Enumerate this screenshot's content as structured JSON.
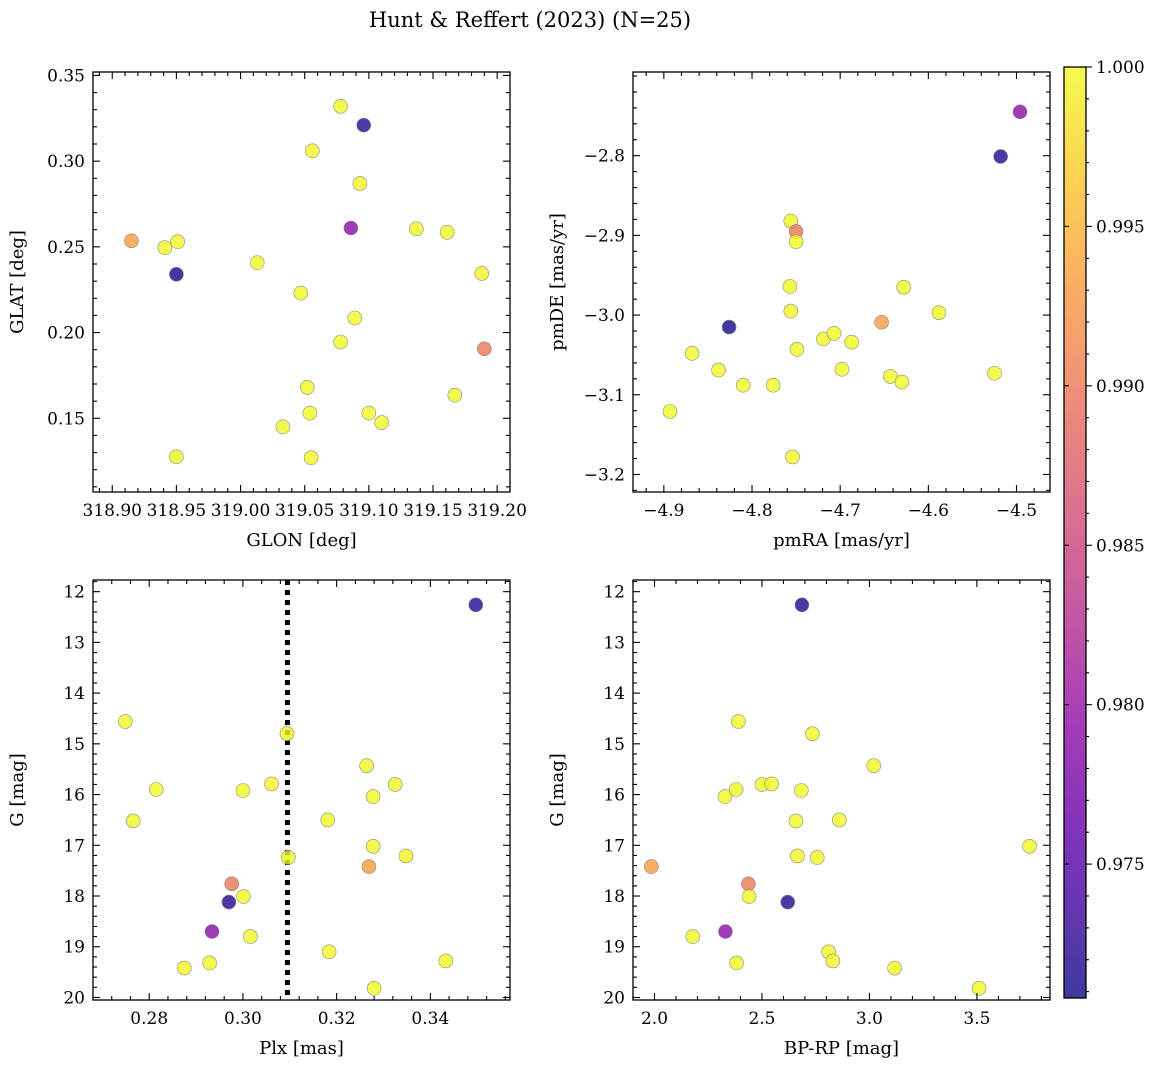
{
  "chart_data": {
    "suptitle": "Hunt & Reffert (2023) (N=25)",
    "colorbar": {
      "range": [
        0.9708,
        1.0
      ],
      "ticks": [
        "0.975",
        "0.980",
        "0.985",
        "0.990",
        "0.995",
        "1.000"
      ],
      "tick_values": [
        0.975,
        0.98,
        0.985,
        0.99,
        0.995,
        1.0
      ],
      "colormap": "plasma"
    },
    "panels": [
      {
        "type": "scatter",
        "xlabel": "GLON [deg]",
        "ylabel": "GLAT [deg]",
        "xlim": [
          318.885,
          319.21
        ],
        "ylim": [
          0.107,
          0.352
        ],
        "invert_y": false,
        "xticks": [
          318.9,
          318.95,
          319.0,
          319.05,
          319.1,
          319.15,
          319.2
        ],
        "xtick_labels": [
          "318.90",
          "318.95",
          "319.00",
          "319.05",
          "319.10",
          "319.15",
          "319.20"
        ],
        "yticks": [
          0.15,
          0.2,
          0.25,
          0.3,
          0.35
        ],
        "ytick_labels": [
          "0.15",
          "0.20",
          "0.25",
          "0.30",
          "0.35"
        ],
        "points": [
          {
            "x": 318.915,
            "y": 0.2535,
            "c": 0.993
          },
          {
            "x": 318.941,
            "y": 0.2495,
            "c": 1.0
          },
          {
            "x": 318.951,
            "y": 0.253,
            "c": 1.0
          },
          {
            "x": 318.95,
            "y": 0.234,
            "c": 0.971
          },
          {
            "x": 318.95,
            "y": 0.1275,
            "c": 1.0
          },
          {
            "x": 319.013,
            "y": 0.2408,
            "c": 1.0
          },
          {
            "x": 319.033,
            "y": 0.145,
            "c": 1.0
          },
          {
            "x": 319.047,
            "y": 0.223,
            "c": 1.0
          },
          {
            "x": 319.052,
            "y": 0.168,
            "c": 1.0
          },
          {
            "x": 319.054,
            "y": 0.153,
            "c": 1.0
          },
          {
            "x": 319.055,
            "y": 0.127,
            "c": 1.0
          },
          {
            "x": 319.056,
            "y": 0.306,
            "c": 1.0
          },
          {
            "x": 319.078,
            "y": 0.332,
            "c": 1.0
          },
          {
            "x": 319.078,
            "y": 0.1945,
            "c": 1.0
          },
          {
            "x": 319.086,
            "y": 0.261,
            "c": 0.979
          },
          {
            "x": 319.089,
            "y": 0.2085,
            "c": 1.0
          },
          {
            "x": 319.093,
            "y": 0.287,
            "c": 1.0
          },
          {
            "x": 319.096,
            "y": 0.321,
            "c": 0.972
          },
          {
            "x": 319.1,
            "y": 0.153,
            "c": 1.0
          },
          {
            "x": 319.11,
            "y": 0.1475,
            "c": 1.0
          },
          {
            "x": 319.137,
            "y": 0.2605,
            "c": 1.0
          },
          {
            "x": 319.161,
            "y": 0.2585,
            "c": 1.0
          },
          {
            "x": 319.167,
            "y": 0.1635,
            "c": 1.0
          },
          {
            "x": 319.188,
            "y": 0.2345,
            "c": 1.0
          },
          {
            "x": 319.19,
            "y": 0.1905,
            "c": 0.99
          }
        ]
      },
      {
        "type": "scatter",
        "xlabel": "pmRA [mas/yr]",
        "ylabel": "pmDE [mas/yr]",
        "xlim": [
          -4.935,
          -4.462
        ],
        "ylim": [
          -3.222,
          -2.695
        ],
        "invert_y": false,
        "xticks": [
          -4.9,
          -4.8,
          -4.7,
          -4.6,
          -4.5
        ],
        "xtick_labels": [
          "−4.9",
          "−4.8",
          "−4.7",
          "−4.6",
          "−4.5"
        ],
        "yticks": [
          -3.2,
          -3.1,
          -3.0,
          -2.9,
          -2.8
        ],
        "ytick_labels": [
          "−3.2",
          "−3.1",
          "−3.0",
          "−2.9",
          "−2.8"
        ],
        "points": [
          {
            "x": -4.893,
            "y": -3.121,
            "c": 1.0
          },
          {
            "x": -4.868,
            "y": -3.048,
            "c": 1.0
          },
          {
            "x": -4.838,
            "y": -3.069,
            "c": 1.0
          },
          {
            "x": -4.826,
            "y": -3.015,
            "c": 0.971
          },
          {
            "x": -4.81,
            "y": -3.088,
            "c": 1.0
          },
          {
            "x": -4.776,
            "y": -3.088,
            "c": 1.0
          },
          {
            "x": -4.756,
            "y": -2.882,
            "c": 1.0
          },
          {
            "x": -4.757,
            "y": -2.964,
            "c": 1.0
          },
          {
            "x": -4.756,
            "y": -2.995,
            "c": 1.0
          },
          {
            "x": -4.754,
            "y": -3.178,
            "c": 1.0
          },
          {
            "x": -4.75,
            "y": -2.895,
            "c": 0.99
          },
          {
            "x": -4.75,
            "y": -2.908,
            "c": 1.0
          },
          {
            "x": -4.749,
            "y": -3.043,
            "c": 1.0
          },
          {
            "x": -4.719,
            "y": -3.03,
            "c": 1.0
          },
          {
            "x": -4.707,
            "y": -3.023,
            "c": 1.0
          },
          {
            "x": -4.698,
            "y": -3.068,
            "c": 1.0
          },
          {
            "x": -4.687,
            "y": -3.034,
            "c": 1.0
          },
          {
            "x": -4.653,
            "y": -3.009,
            "c": 0.993
          },
          {
            "x": -4.643,
            "y": -3.077,
            "c": 1.0
          },
          {
            "x": -4.63,
            "y": -3.084,
            "c": 1.0
          },
          {
            "x": -4.628,
            "y": -2.965,
            "c": 1.0
          },
          {
            "x": -4.588,
            "y": -2.997,
            "c": 1.0
          },
          {
            "x": -4.525,
            "y": -3.073,
            "c": 1.0
          },
          {
            "x": -4.518,
            "y": -2.801,
            "c": 0.972
          },
          {
            "x": -4.496,
            "y": -2.745,
            "c": 0.979
          }
        ]
      },
      {
        "type": "scatter",
        "xlabel": "Plx [mas]",
        "ylabel": "G [mag]",
        "xlim": [
          0.268,
          0.357
        ],
        "ylim": [
          20.05,
          11.77
        ],
        "invert_y": true,
        "vline": {
          "x": 0.3095,
          "style": "dotted",
          "color": "#000000"
        },
        "xticks": [
          0.28,
          0.3,
          0.32,
          0.34
        ],
        "xtick_labels": [
          "0.28",
          "0.30",
          "0.32",
          "0.34"
        ],
        "yticks": [
          12,
          13,
          14,
          15,
          16,
          17,
          18,
          19,
          20
        ],
        "ytick_labels": [
          "12",
          "13",
          "14",
          "15",
          "16",
          "17",
          "18",
          "19",
          "20"
        ],
        "points": [
          {
            "x": 0.2749,
            "y": 14.56,
            "c": 1.0
          },
          {
            "x": 0.2766,
            "y": 16.52,
            "c": 1.0
          },
          {
            "x": 0.2815,
            "y": 15.9,
            "c": 1.0
          },
          {
            "x": 0.2875,
            "y": 19.42,
            "c": 1.0
          },
          {
            "x": 0.2929,
            "y": 19.32,
            "c": 1.0
          },
          {
            "x": 0.2934,
            "y": 18.7,
            "c": 0.979
          },
          {
            "x": 0.297,
            "y": 18.12,
            "c": 0.972
          },
          {
            "x": 0.2976,
            "y": 17.76,
            "c": 0.99
          },
          {
            "x": 0.3,
            "y": 15.92,
            "c": 1.0
          },
          {
            "x": 0.3001,
            "y": 18.01,
            "c": 1.0
          },
          {
            "x": 0.3016,
            "y": 18.8,
            "c": 1.0
          },
          {
            "x": 0.3061,
            "y": 15.79,
            "c": 1.0
          },
          {
            "x": 0.3094,
            "y": 14.8,
            "c": 1.0
          },
          {
            "x": 0.3097,
            "y": 17.24,
            "c": 1.0
          },
          {
            "x": 0.3181,
            "y": 16.5,
            "c": 1.0
          },
          {
            "x": 0.3184,
            "y": 19.1,
            "c": 1.0
          },
          {
            "x": 0.3264,
            "y": 15.43,
            "c": 1.0
          },
          {
            "x": 0.3269,
            "y": 17.42,
            "c": 0.993
          },
          {
            "x": 0.3278,
            "y": 16.04,
            "c": 1.0
          },
          {
            "x": 0.3278,
            "y": 17.02,
            "c": 1.0
          },
          {
            "x": 0.328,
            "y": 19.82,
            "c": 1.0
          },
          {
            "x": 0.3325,
            "y": 15.8,
            "c": 1.0
          },
          {
            "x": 0.3348,
            "y": 17.21,
            "c": 1.0
          },
          {
            "x": 0.3433,
            "y": 19.28,
            "c": 1.0
          },
          {
            "x": 0.3497,
            "y": 12.26,
            "c": 0.972
          }
        ]
      },
      {
        "type": "scatter",
        "xlabel": "BP-RP [mag]",
        "ylabel": "G [mag]",
        "xlim": [
          1.9,
          3.84
        ],
        "ylim": [
          20.05,
          11.77
        ],
        "invert_y": true,
        "xticks": [
          2.0,
          2.5,
          3.0,
          3.5
        ],
        "xtick_labels": [
          "2.0",
          "2.5",
          "3.0",
          "3.5"
        ],
        "yticks": [
          12,
          13,
          14,
          15,
          16,
          17,
          18,
          19,
          20
        ],
        "ytick_labels": [
          "12",
          "13",
          "14",
          "15",
          "16",
          "17",
          "18",
          "19",
          "20"
        ],
        "points": [
          {
            "x": 1.985,
            "y": 17.42,
            "c": 0.993
          },
          {
            "x": 2.178,
            "y": 18.8,
            "c": 1.0
          },
          {
            "x": 2.328,
            "y": 16.04,
            "c": 1.0
          },
          {
            "x": 2.33,
            "y": 18.7,
            "c": 0.979
          },
          {
            "x": 2.38,
            "y": 15.9,
            "c": 1.0
          },
          {
            "x": 2.382,
            "y": 19.32,
            "c": 1.0
          },
          {
            "x": 2.39,
            "y": 14.56,
            "c": 1.0
          },
          {
            "x": 2.437,
            "y": 17.76,
            "c": 0.99
          },
          {
            "x": 2.44,
            "y": 18.01,
            "c": 1.0
          },
          {
            "x": 2.5,
            "y": 15.8,
            "c": 1.0
          },
          {
            "x": 2.545,
            "y": 15.79,
            "c": 1.0
          },
          {
            "x": 2.62,
            "y": 18.12,
            "c": 0.972
          },
          {
            "x": 2.658,
            "y": 16.52,
            "c": 1.0
          },
          {
            "x": 2.665,
            "y": 17.21,
            "c": 1.0
          },
          {
            "x": 2.683,
            "y": 15.92,
            "c": 1.0
          },
          {
            "x": 2.686,
            "y": 12.26,
            "c": 0.972
          },
          {
            "x": 2.735,
            "y": 14.8,
            "c": 1.0
          },
          {
            "x": 2.757,
            "y": 17.24,
            "c": 1.0
          },
          {
            "x": 2.81,
            "y": 19.1,
            "c": 1.0
          },
          {
            "x": 2.83,
            "y": 19.28,
            "c": 1.0
          },
          {
            "x": 2.86,
            "y": 16.5,
            "c": 1.0
          },
          {
            "x": 3.02,
            "y": 15.43,
            "c": 1.0
          },
          {
            "x": 3.117,
            "y": 19.42,
            "c": 1.0
          },
          {
            "x": 3.51,
            "y": 19.82,
            "c": 1.0
          },
          {
            "x": 3.745,
            "y": 17.02,
            "c": 1.0
          }
        ]
      }
    ]
  }
}
